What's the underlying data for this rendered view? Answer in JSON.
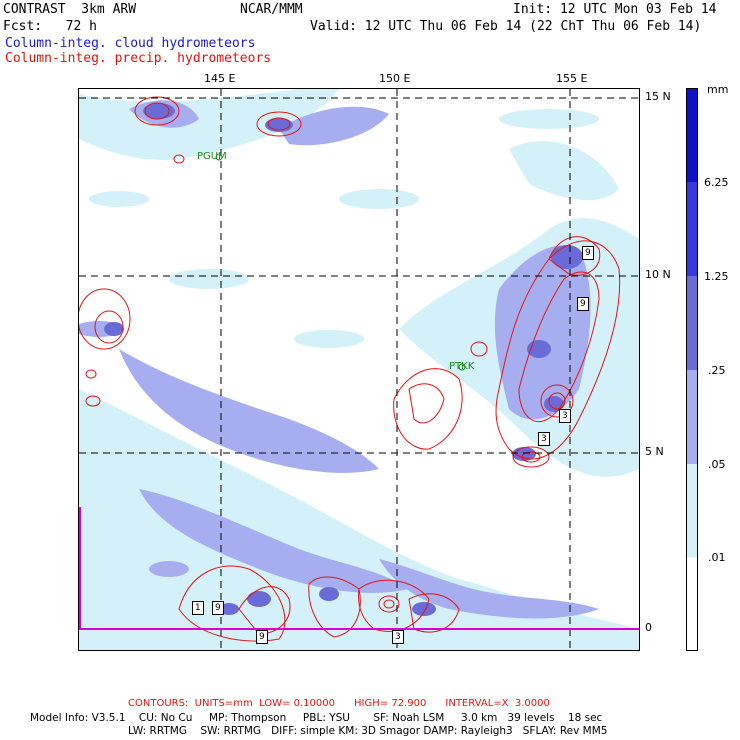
{
  "header": {
    "line1_left": "CONTRAST  3km ARW",
    "line1_center": "NCAR/MMM",
    "line1_right": "Init: 12 UTC Mon 03 Feb 14",
    "line2_left": "Fcst:   72 h",
    "line2_right": "Valid: 12 UTC Thu 06 Feb 14 (22 ChT Thu 06 Feb 14)",
    "legend_cloud": "Column-integ. cloud hydrometeors",
    "legend_precip": "Column-integ. precip. hydrometeors"
  },
  "map": {
    "lon_labels": [
      "145 E",
      "150 E",
      "155 E"
    ],
    "lat_labels": [
      "15 N",
      "10 N",
      "5 N",
      "0"
    ],
    "stations": [
      "PGUM",
      "PTKK"
    ],
    "contour_labels": [
      "9",
      "9",
      "3",
      "1",
      "9",
      "9",
      "3",
      "3"
    ],
    "colors": {
      "shade_light": "#d4f1f9",
      "shade_mid": "#a6aef0",
      "shade_dark": "#6b6bd8",
      "contour": "#e01414",
      "boundary": "#d800d8"
    }
  },
  "colorbar": {
    "unit": "mm",
    "labels": [
      "6.25",
      "1.25",
      ".25",
      ".05",
      ".01"
    ],
    "colors": [
      "#1010c8",
      "#3838dc",
      "#6b6bd8",
      "#a6aef0",
      "#d4f1f9",
      "#ffffff"
    ]
  },
  "footer": {
    "contours": "CONTOURS:  UNITS=mm  LOW= 0.10000      HIGH= 72.900      INTERVAL=X  3.0000",
    "model_line1": "Model Info: V3.5.1    CU: No Cu     MP: Thompson     PBL: YSU       SF: Noah LSM     3.0 km   39 levels    18 sec",
    "model_line2": "LW: RRTMG    SW: RRTMG   DIFF: simple KM: 3D Smagor DAMP: Rayleigh3   SFLAY: Rev MM5"
  }
}
